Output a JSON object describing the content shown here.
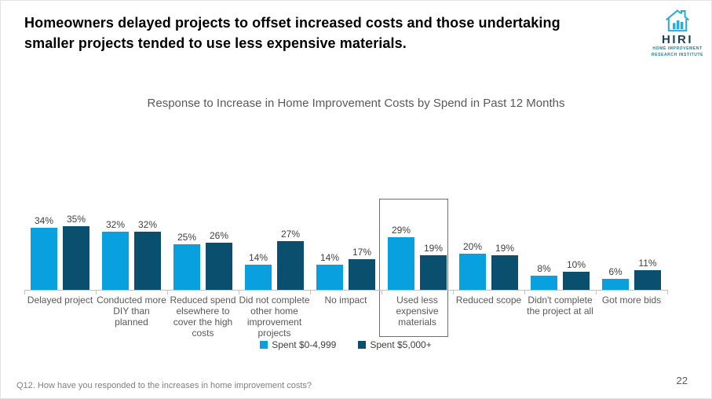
{
  "slide": {
    "title": "Homeowners delayed projects to offset increased costs and those undertaking smaller projects tended to use less expensive materials.",
    "footnote": "Q12. How have you responded to the increases in home improvement costs?",
    "page_number": "22"
  },
  "logo": {
    "word": "HIRI",
    "tagline_line1": "HOME IMPROVEMENT",
    "tagline_line2": "RESEARCH INSTITUTE",
    "colors": {
      "icon_blue": "#29ABE2",
      "navy": "#1b4257",
      "teal": "#1d7f93"
    }
  },
  "chart_data": {
    "type": "bar",
    "title": "Response to Increase in Home Improvement Costs by Spend in Past 12 Months",
    "categories": [
      "Delayed project",
      "Conducted more DIY than planned",
      "Reduced spend elsewhere to cover the high costs",
      "Did not complete other home improvement projects",
      "No impact",
      "Used less expensive materials",
      "Reduced scope",
      "Didn't complete the project at all",
      "Got more bids"
    ],
    "series": [
      {
        "name": "Spent $0-4,999",
        "color": "#08A0DE",
        "values": [
          34,
          32,
          25,
          14,
          14,
          29,
          20,
          8,
          6
        ]
      },
      {
        "name": "Spent $5,000+",
        "color": "#0A506E",
        "values": [
          35,
          32,
          26,
          27,
          17,
          19,
          19,
          10,
          11
        ]
      }
    ],
    "value_suffix": "%",
    "data_labels": true,
    "grid": false,
    "legend_position": "bottom",
    "ylim": [
      0,
      40
    ],
    "highlighted_index": 5,
    "highlighted_category": "Used less expensive materials",
    "axis_color": "#c3c3c3"
  }
}
